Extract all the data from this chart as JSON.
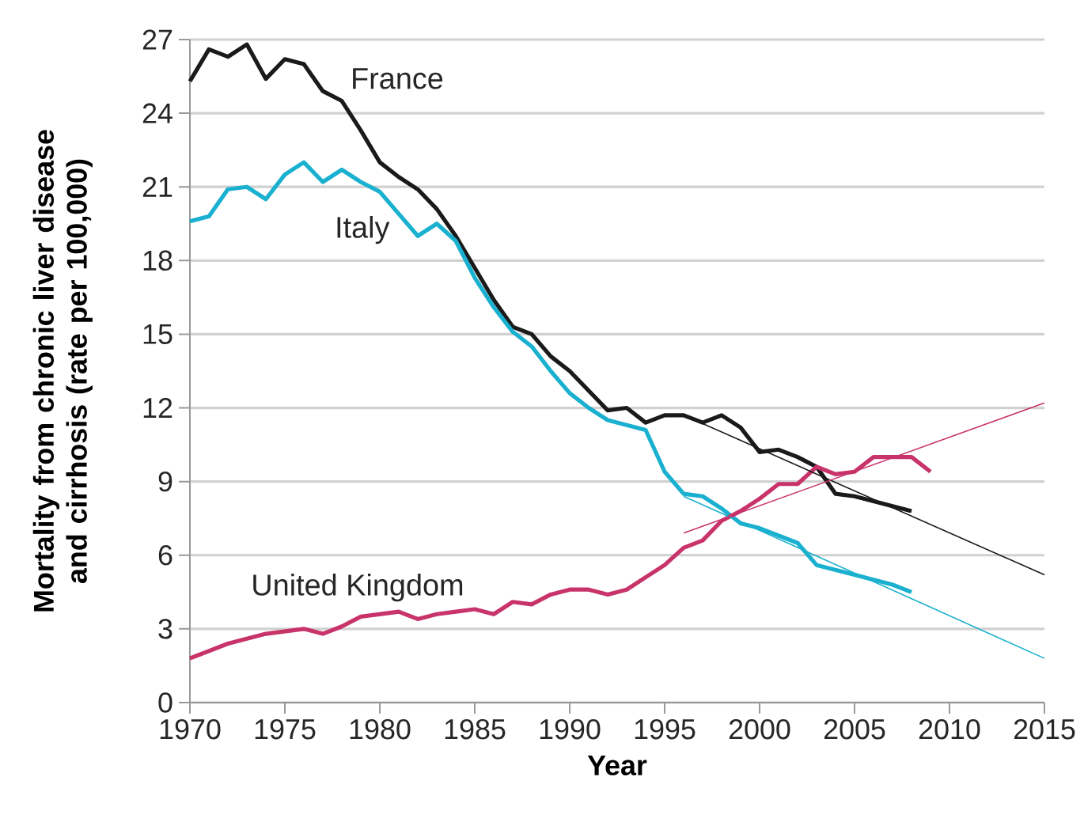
{
  "chart_data": {
    "type": "line",
    "xlabel": "Year",
    "ylabel": "Mortality from chronic liver disease and cirrhosis (rate per 100,000)",
    "xlim": [
      1970,
      2015
    ],
    "ylim": [
      0,
      27
    ],
    "xticks": [
      1970,
      1975,
      1980,
      1985,
      1990,
      1995,
      2000,
      2005,
      2010,
      2015
    ],
    "yticks": [
      0,
      3,
      6,
      9,
      12,
      15,
      18,
      21,
      24,
      27
    ],
    "grid": "y",
    "legend": false,
    "marker": "none",
    "line_style": "solid",
    "series": [
      {
        "name": "France",
        "color": "#1a1a1a",
        "x": [
          1970,
          1971,
          1972,
          1973,
          1974,
          1975,
          1976,
          1977,
          1978,
          1979,
          1980,
          1981,
          1982,
          1983,
          1984,
          1985,
          1986,
          1987,
          1988,
          1989,
          1990,
          1991,
          1992,
          1993,
          1994,
          1995,
          1996,
          1997,
          1998,
          1999,
          2000,
          2001,
          2002,
          2003,
          2004,
          2005,
          2006,
          2007,
          2008
        ],
        "values": [
          25.3,
          26.6,
          26.3,
          26.8,
          25.4,
          26.2,
          26.0,
          24.9,
          24.5,
          23.3,
          22.0,
          21.4,
          20.9,
          20.1,
          19.0,
          17.7,
          16.4,
          15.3,
          15.0,
          14.1,
          13.5,
          12.7,
          11.9,
          12.0,
          11.4,
          11.7,
          11.7,
          11.4,
          11.7,
          11.2,
          10.2,
          10.3,
          10.0,
          9.6,
          8.5,
          8.4,
          8.2,
          8.0,
          7.8
        ]
      },
      {
        "name": "Italy",
        "color": "#1ab0cf",
        "x": [
          1970,
          1971,
          1972,
          1973,
          1974,
          1975,
          1976,
          1977,
          1978,
          1979,
          1980,
          1981,
          1982,
          1983,
          1984,
          1985,
          1986,
          1987,
          1988,
          1989,
          1990,
          1991,
          1992,
          1993,
          1994,
          1995,
          1996,
          1997,
          1998,
          1999,
          2000,
          2001,
          2002,
          2003,
          2004,
          2005,
          2006,
          2007,
          2008
        ],
        "values": [
          19.6,
          19.8,
          20.9,
          21.0,
          20.5,
          21.5,
          22.0,
          21.2,
          21.7,
          21.2,
          20.8,
          19.9,
          19.0,
          19.5,
          18.8,
          17.3,
          16.1,
          15.1,
          14.5,
          13.5,
          12.6,
          12.0,
          11.5,
          11.3,
          11.1,
          9.4,
          8.5,
          8.4,
          7.9,
          7.3,
          7.1,
          6.8,
          6.5,
          5.6,
          5.4,
          5.2,
          5.0,
          4.8,
          4.5
        ]
      },
      {
        "name": "United Kingdom",
        "color": "#c8336a",
        "x": [
          1970,
          1971,
          1972,
          1973,
          1974,
          1975,
          1976,
          1977,
          1978,
          1979,
          1980,
          1981,
          1982,
          1983,
          1984,
          1985,
          1986,
          1987,
          1988,
          1989,
          1990,
          1991,
          1992,
          1993,
          1994,
          1995,
          1996,
          1997,
          1998,
          1999,
          2000,
          2001,
          2002,
          2003,
          2004,
          2005,
          2006,
          2007,
          2008,
          2009
        ],
        "values": [
          1.8,
          2.1,
          2.4,
          2.6,
          2.8,
          2.9,
          3.0,
          2.8,
          3.1,
          3.5,
          3.6,
          3.7,
          3.4,
          3.6,
          3.7,
          3.8,
          3.6,
          4.1,
          4.0,
          4.4,
          4.6,
          4.6,
          4.4,
          4.6,
          5.1,
          5.6,
          6.3,
          6.6,
          7.4,
          7.8,
          8.3,
          8.9,
          8.9,
          9.6,
          9.3,
          9.4,
          10.0,
          10.0,
          10.0,
          9.4
        ]
      },
      {
        "color": "#1a1a1a",
        "x": [
          1996,
          2015
        ],
        "values": [
          11.7,
          5.2
        ]
      },
      {
        "color": "#1ab0cf",
        "x": [
          1996,
          2015
        ],
        "values": [
          8.4,
          1.8
        ]
      },
      {
        "color": "#c8336a",
        "x": [
          1996,
          2015
        ],
        "values": [
          6.9,
          12.2
        ]
      }
    ]
  }
}
